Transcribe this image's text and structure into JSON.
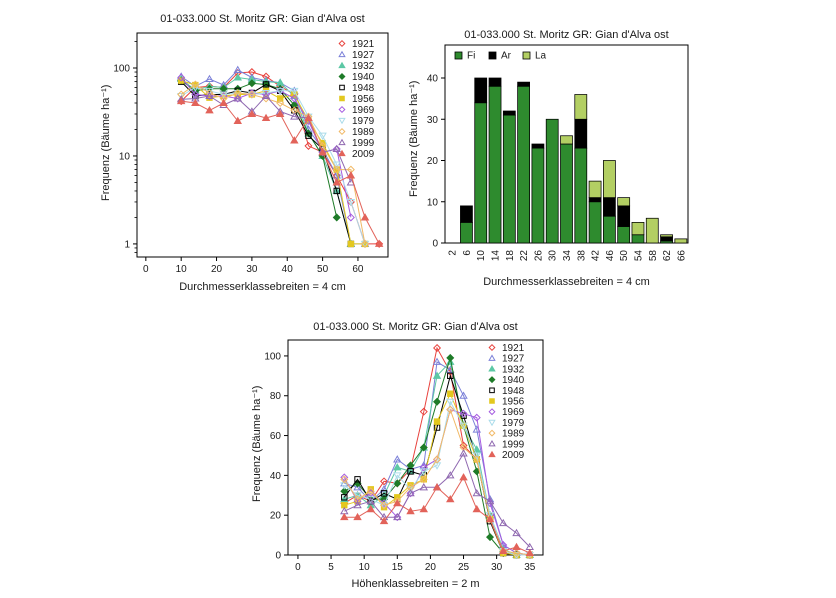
{
  "page": {
    "background": "#ffffff"
  },
  "chart_data": [
    {
      "id": "diameter-lines",
      "type": "line",
      "title": "01-033.000 St. Moritz GR: Gian d'Alva ost",
      "xlabel": "Durchmesserklassebreiten =  4 cm",
      "ylabel": "Frequenz (Bäume ha⁻¹)",
      "yscale": "log",
      "xlim": [
        -2.5,
        68.5
      ],
      "ylim": [
        0.71,
        250
      ],
      "xticks": [
        0,
        10,
        20,
        30,
        40,
        50,
        60
      ],
      "yticks": [
        1,
        10,
        100
      ],
      "grid": false,
      "legend_position": "top-right",
      "x": [
        10,
        14,
        18,
        22,
        26,
        30,
        34,
        38,
        42,
        46,
        50,
        54,
        58,
        62,
        66
      ],
      "series": [
        {
          "name": "1921",
          "color": "#e8413c",
          "marker": "diamond",
          "filled": false,
          "values": [
            42,
            60,
            62,
            60,
            88,
            90,
            80,
            62,
            50,
            13,
            11,
            6,
            3,
            1,
            1
          ]
        },
        {
          "name": "1927",
          "color": "#7b80d8",
          "marker": "triangle-up",
          "filled": false,
          "values": [
            80,
            62,
            75,
            64,
            95,
            78,
            72,
            68,
            55,
            20,
            12,
            6,
            1,
            1,
            null
          ]
        },
        {
          "name": "1932",
          "color": "#5cc8a5",
          "marker": "triangle-up",
          "filled": true,
          "values": [
            75,
            56,
            62,
            60,
            78,
            74,
            70,
            68,
            48,
            18,
            10,
            4,
            1,
            null,
            null
          ]
        },
        {
          "name": "1940",
          "color": "#1e7b28",
          "marker": "diamond",
          "filled": true,
          "values": [
            72,
            55,
            58,
            58,
            58,
            67,
            65,
            58,
            38,
            18,
            10,
            2,
            null,
            null,
            null
          ]
        },
        {
          "name": "1948",
          "color": "#000000",
          "marker": "square",
          "filled": false,
          "values": [
            70,
            48,
            50,
            50,
            55,
            52,
            65,
            55,
            33,
            17,
            12,
            4,
            1,
            null,
            null
          ]
        },
        {
          "name": "1956",
          "color": "#e3c81f",
          "marker": "square",
          "filled": true,
          "values": [
            72,
            64,
            46,
            48,
            50,
            50,
            55,
            45,
            50,
            25,
            14,
            7,
            1,
            1,
            null
          ]
        },
        {
          "name": "1969",
          "color": "#a55ce0",
          "marker": "diamond",
          "filled": false,
          "values": [
            78,
            50,
            48,
            48,
            45,
            52,
            50,
            55,
            45,
            25,
            11,
            12,
            2,
            null,
            null
          ]
        },
        {
          "name": "1979",
          "color": "#abdcea",
          "marker": "triangle-down",
          "filled": false,
          "values": [
            48,
            60,
            55,
            50,
            52,
            50,
            52,
            55,
            55,
            28,
            17,
            8,
            3,
            1,
            null
          ]
        },
        {
          "name": "1989",
          "color": "#f1b966",
          "marker": "diamond",
          "filled": false,
          "values": [
            50,
            65,
            52,
            45,
            52,
            50,
            45,
            40,
            33,
            28,
            13,
            7,
            7,
            1,
            null
          ]
        },
        {
          "name": "1999",
          "color": "#8f68b0",
          "marker": "triangle-up",
          "filled": false,
          "values": [
            44,
            45,
            48,
            38,
            45,
            32,
            48,
            32,
            28,
            27,
            11,
            12,
            5,
            null,
            null
          ]
        },
        {
          "name": "2009",
          "color": "#e2635a",
          "marker": "triangle-up",
          "filled": true,
          "values": [
            42,
            40,
            33,
            40,
            25,
            30,
            27,
            30,
            15,
            27,
            11,
            5,
            6,
            2,
            1
          ]
        }
      ]
    },
    {
      "id": "species-diameter-bars",
      "type": "stacked-bar",
      "title": "01-033.000 St. Moritz GR: Gian d'Alva ost",
      "xlabel": "Durchmesserklassebreiten =  4 cm",
      "ylabel": "Frequenz (Bäume ha⁻¹)",
      "ylim": [
        0,
        48
      ],
      "yticks": [
        0,
        10,
        20,
        30,
        40
      ],
      "grid": false,
      "legend_position": "top-left-horizontal",
      "categories": [
        "2",
        "6",
        "10",
        "14",
        "18",
        "22",
        "26",
        "30",
        "34",
        "38",
        "42",
        "46",
        "50",
        "54",
        "58",
        "62",
        "66"
      ],
      "series": [
        {
          "name": "Fi",
          "color": "#2e8b2e",
          "values": [
            0,
            5,
            34,
            38,
            31,
            38,
            23,
            30,
            24,
            23,
            10,
            6.5,
            4,
            2,
            0,
            0.5,
            0
          ]
        },
        {
          "name": "Ar",
          "color": "#000000",
          "values": [
            0,
            4,
            6,
            2,
            1,
            1,
            1,
            0,
            0,
            7,
            1,
            4.5,
            5,
            0,
            0,
            1,
            0
          ]
        },
        {
          "name": "La",
          "color": "#b3cf63",
          "values": [
            0,
            0,
            0,
            0,
            0,
            0,
            0,
            0,
            2,
            6,
            4,
            9,
            2,
            3,
            6,
            0.5,
            1
          ]
        }
      ]
    },
    {
      "id": "height-lines",
      "type": "line",
      "title": "01-033.000 St. Moritz GR: Gian d'Alva ost",
      "xlabel": "Höhenklassebreiten =  2 m",
      "ylabel": "Frequenz (Bäume ha⁻¹)",
      "yscale": "linear",
      "xlim": [
        -1.5,
        37
      ],
      "ylim": [
        0,
        108
      ],
      "xticks": [
        0,
        5,
        10,
        15,
        20,
        25,
        30,
        35
      ],
      "yticks": [
        0,
        20,
        40,
        60,
        80,
        100
      ],
      "grid": false,
      "legend_position": "top-right",
      "x": [
        7,
        9,
        11,
        13,
        15,
        17,
        19,
        21,
        23,
        25,
        27,
        29,
        31,
        33,
        35
      ],
      "series": [
        {
          "name": "1921",
          "color": "#e8413c",
          "marker": "diamond",
          "filled": false,
          "values": [
            26,
            30,
            27,
            37,
            36,
            43,
            72,
            104,
            92,
            55,
            48,
            20,
            1,
            0,
            0
          ]
        },
        {
          "name": "1927",
          "color": "#7b80d8",
          "marker": "triangle-up",
          "filled": false,
          "values": [
            36,
            34,
            27,
            33,
            48,
            43,
            45,
            97,
            93,
            80,
            63,
            28,
            5,
            1,
            0
          ]
        },
        {
          "name": "1932",
          "color": "#5cc8a5",
          "marker": "triangle-up",
          "filled": true,
          "values": [
            28,
            30,
            25,
            30,
            44,
            42,
            54,
            90,
            97,
            65,
            53,
            20,
            3,
            0,
            0
          ]
        },
        {
          "name": "1940",
          "color": "#1e7b28",
          "marker": "diamond",
          "filled": true,
          "values": [
            32,
            36,
            28,
            28,
            36,
            45,
            54,
            77,
            99,
            65,
            42,
            9,
            1,
            0,
            0
          ]
        },
        {
          "name": "1948",
          "color": "#000000",
          "marker": "square",
          "filled": false,
          "values": [
            29,
            38,
            27,
            31,
            28,
            42,
            40,
            64,
            90,
            70,
            48,
            17,
            1,
            0,
            0
          ]
        },
        {
          "name": "1956",
          "color": "#e3c81f",
          "marker": "square",
          "filled": true,
          "values": [
            25,
            27,
            33,
            24,
            29,
            35,
            38,
            67,
            81,
            65,
            48,
            18,
            1,
            0,
            0
          ]
        },
        {
          "name": "1969",
          "color": "#a55ce0",
          "marker": "diamond",
          "filled": false,
          "values": [
            39,
            27,
            31,
            26,
            19,
            31,
            44,
            48,
            73,
            71,
            69,
            26,
            5,
            1,
            0
          ]
        },
        {
          "name": "1979",
          "color": "#abdcea",
          "marker": "triangle-down",
          "filled": false,
          "values": [
            35,
            30,
            28,
            25,
            40,
            33,
            42,
            45,
            77,
            65,
            50,
            20,
            2,
            0,
            0
          ]
        },
        {
          "name": "1989",
          "color": "#f1b966",
          "marker": "diamond",
          "filled": false,
          "values": [
            38,
            28,
            32,
            25,
            27,
            34,
            38,
            48,
            73,
            54,
            48,
            18,
            2,
            1,
            0
          ]
        },
        {
          "name": "1999",
          "color": "#8f68b0",
          "marker": "triangle-up",
          "filled": false,
          "values": [
            22,
            25,
            27,
            19,
            19,
            31,
            34,
            34,
            40,
            51,
            31,
            27,
            16,
            11,
            4
          ]
        },
        {
          "name": "2009",
          "color": "#e2635a",
          "marker": "triangle-up",
          "filled": true,
          "values": [
            19,
            19,
            23,
            17,
            26,
            22,
            23,
            34,
            28,
            39,
            23,
            18,
            2,
            4,
            1
          ]
        }
      ]
    }
  ]
}
